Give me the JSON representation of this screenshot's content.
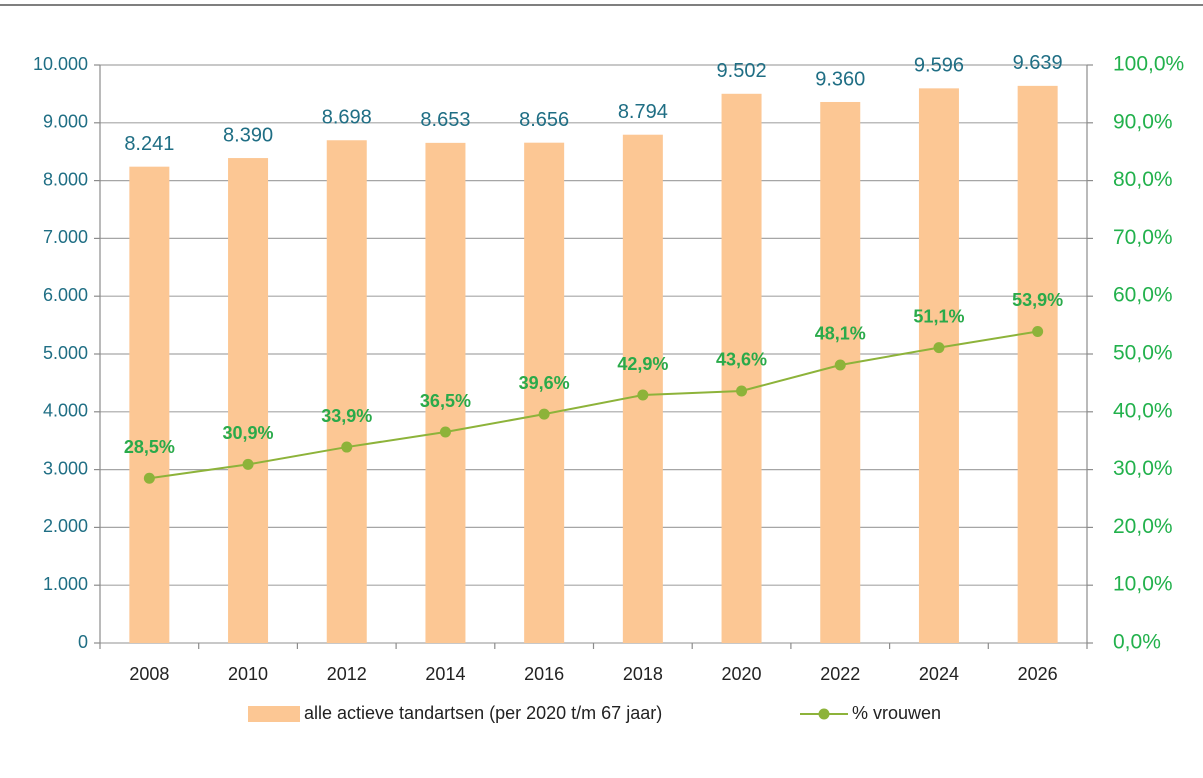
{
  "chart_data": {
    "type": "bar",
    "categories": [
      "2008",
      "2010",
      "2012",
      "2014",
      "2016",
      "2018",
      "2020",
      "2022",
      "2024",
      "2026"
    ],
    "series": [
      {
        "name": "alle actieve tandartsen (per 2020 t/m 67 jaar)",
        "type": "bar",
        "color": "#fcc794",
        "values": [
          8241,
          8390,
          8698,
          8653,
          8656,
          8794,
          9502,
          9360,
          9596,
          9639
        ],
        "value_labels": [
          "8.241",
          "8.390",
          "8.698",
          "8.653",
          "8.656",
          "8.794",
          "9.502",
          "9.360",
          "9.596",
          "9.639"
        ]
      },
      {
        "name": "% vrouwen",
        "type": "line",
        "axis": "y2",
        "color": "#8db33a",
        "values": [
          28.5,
          30.9,
          33.9,
          36.5,
          39.6,
          42.9,
          43.6,
          48.1,
          51.1,
          53.9
        ],
        "value_labels": [
          "28,5%",
          "30,9%",
          "33,9%",
          "36,5%",
          "39,6%",
          "42,9%",
          "43,6%",
          "48,1%",
          "51,1%",
          "53,9%"
        ]
      }
    ],
    "ylim": [
      0,
      10000
    ],
    "yticks": [
      0,
      {
        "value": 1000,
        "label": "1.000"
      },
      {
        "value": 2000,
        "label": "2.000"
      },
      {
        "value": 3000,
        "label": "3.000"
      },
      {
        "value": 4000,
        "label": "4.000"
      },
      {
        "value": 5000,
        "label": "5.000"
      },
      {
        "value": 6000,
        "label": "6.000"
      },
      {
        "value": 7000,
        "label": "7.000"
      },
      {
        "value": 8000,
        "label": "8.000"
      },
      {
        "value": 9000,
        "label": "9.000"
      },
      {
        "value": 10000,
        "label": "10.000"
      }
    ],
    "y2lim": [
      0,
      100
    ],
    "y2ticks": [
      {
        "value": 0,
        "label": "0,0%"
      },
      {
        "value": 10,
        "label": "10,0%"
      },
      {
        "value": 20,
        "label": "20,0%"
      },
      {
        "value": 30,
        "label": "30,0%"
      },
      {
        "value": 40,
        "label": "40,0%"
      },
      {
        "value": 50,
        "label": "50,0%"
      },
      {
        "value": 60,
        "label": "60,0%"
      },
      {
        "value": 70,
        "label": "70,0%"
      },
      {
        "value": 80,
        "label": "80,0%"
      },
      {
        "value": 90,
        "label": "90,0%"
      },
      {
        "value": 100,
        "label": "100,0%"
      }
    ],
    "grid": true,
    "legend": "bottom"
  }
}
